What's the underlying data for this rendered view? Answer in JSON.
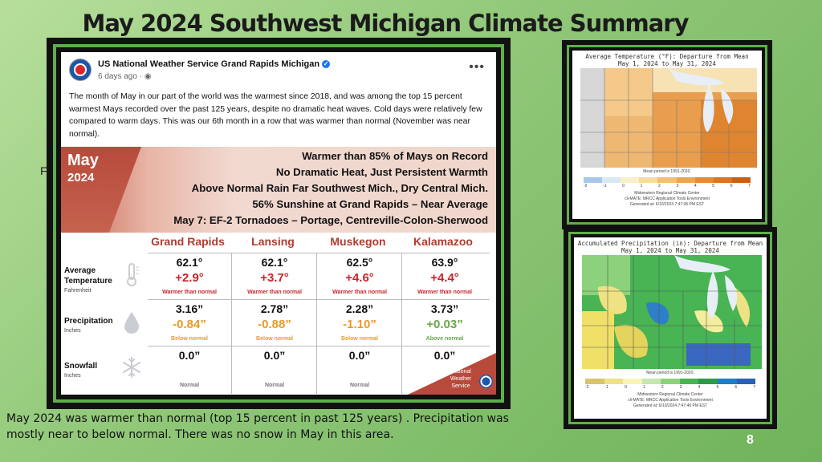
{
  "slide": {
    "title": "May 2024 Southwest Michigan Climate Summary",
    "stray_text": "Fo",
    "caption": "May 2024 was warmer than normal  (top 15 percent in past 125  years) . Precipitation was mostly near to below normal.  There was no snow in May in this area.",
    "page_number": "8"
  },
  "post": {
    "author": "US National Weather Service Grand Rapids Michigan",
    "time": "6 days ago · ",
    "more": "•••",
    "body": "The month of May in our part of the world was the warmest since 2018, and was among the top 15 percent warmest Mays recorded over the past 125 years, despite no dramatic heat waves. Cold days were relatively few compared to warm days. This was our 6th month in a row that was warmer than normal (November was near normal).",
    "banner": {
      "month": "May",
      "year": "2024",
      "lines": [
        "Warmer than 85% of Mays on Record",
        "No Dramatic Heat, Just Persistent Warmth",
        "Above Normal Rain Far Southwest Mich., Dry Central Mich.",
        "56% Sunshine at Grand Rapids – Near Average",
        "May 7:  EF-2 Tornadoes – Portage, Centreville-Colon-Sherwood"
      ]
    },
    "stations": [
      "Grand Rapids",
      "Lansing",
      "Muskegon",
      "Kalamazoo"
    ],
    "rows": {
      "temp": {
        "label": "Average Temperature",
        "unit": "Fahrenheit",
        "values": [
          "62.1°",
          "62.1°",
          "62.5°",
          "63.9°"
        ],
        "departures": [
          "+2.9°",
          "+3.7°",
          "+4.6°",
          "+4.4°"
        ],
        "notes": [
          "Warmer than normal",
          "Warmer than normal",
          "Warmer than normal",
          "Warmer than normal"
        ]
      },
      "precip": {
        "label": "Precipitation",
        "unit": "Inches",
        "values": [
          "3.16”",
          "2.78”",
          "2.28”",
          "3.73”"
        ],
        "departures": [
          "-0.84”",
          "-0.88”",
          "-1.10”",
          "+0.03”"
        ],
        "notes": [
          "Below normal",
          "Below normal",
          "Below normal",
          "Above normal"
        ]
      },
      "snow": {
        "label": "Snowfall",
        "unit": "Inches",
        "values": [
          "0.0”",
          "0.0”",
          "0.0”",
          "0.0”"
        ],
        "notes": [
          "Normal",
          "Normal",
          "Normal",
          "Normal"
        ]
      }
    },
    "nws_badge": "National Weather Service"
  },
  "map_temp": {
    "title": "Average Temperature (°F): Departure from Mean",
    "subtitle": "May 1, 2024 to May 31, 2024",
    "legend_ticks": [
      "-2",
      "-1",
      "0",
      "1",
      "2",
      "3",
      "4",
      "5",
      "6",
      "7"
    ],
    "legend_colors": [
      "#a8c8e8",
      "#d8e8f4",
      "#f7f0c8",
      "#f8dc9c",
      "#f4c070",
      "#eea550",
      "#e68a34",
      "#dc7420",
      "#cc5e14"
    ],
    "footer": [
      "Midwestern Regional Climate Center",
      "cli-MATE: MRCC Application Tools Environment",
      "Generated at: 6/10/2024 7:47:06 PM EST"
    ],
    "mean_period": "Mean period is 1991-2020."
  },
  "map_precip": {
    "title": "Accumulated Precipitation (in): Departure from Mean",
    "subtitle": "May 1, 2024 to May 31, 2024",
    "legend_ticks": [
      "-2",
      "-1",
      "0",
      "1",
      "2",
      "3",
      "4",
      "5",
      "6",
      "7"
    ],
    "legend_colors": [
      "#d8c46a",
      "#eee284",
      "#f8f4b8",
      "#c8e6b0",
      "#8cd27c",
      "#48b454",
      "#2a9c48",
      "#1c7fc8",
      "#2c5fb8"
    ],
    "footer": [
      "Midwestern Regional Climate Center",
      "cli-MATE: MRCC Application Tools Environment",
      "Generated at: 6/10/2024 7:47:46 PM EST"
    ],
    "mean_period": "Mean period is 1991-2020."
  }
}
